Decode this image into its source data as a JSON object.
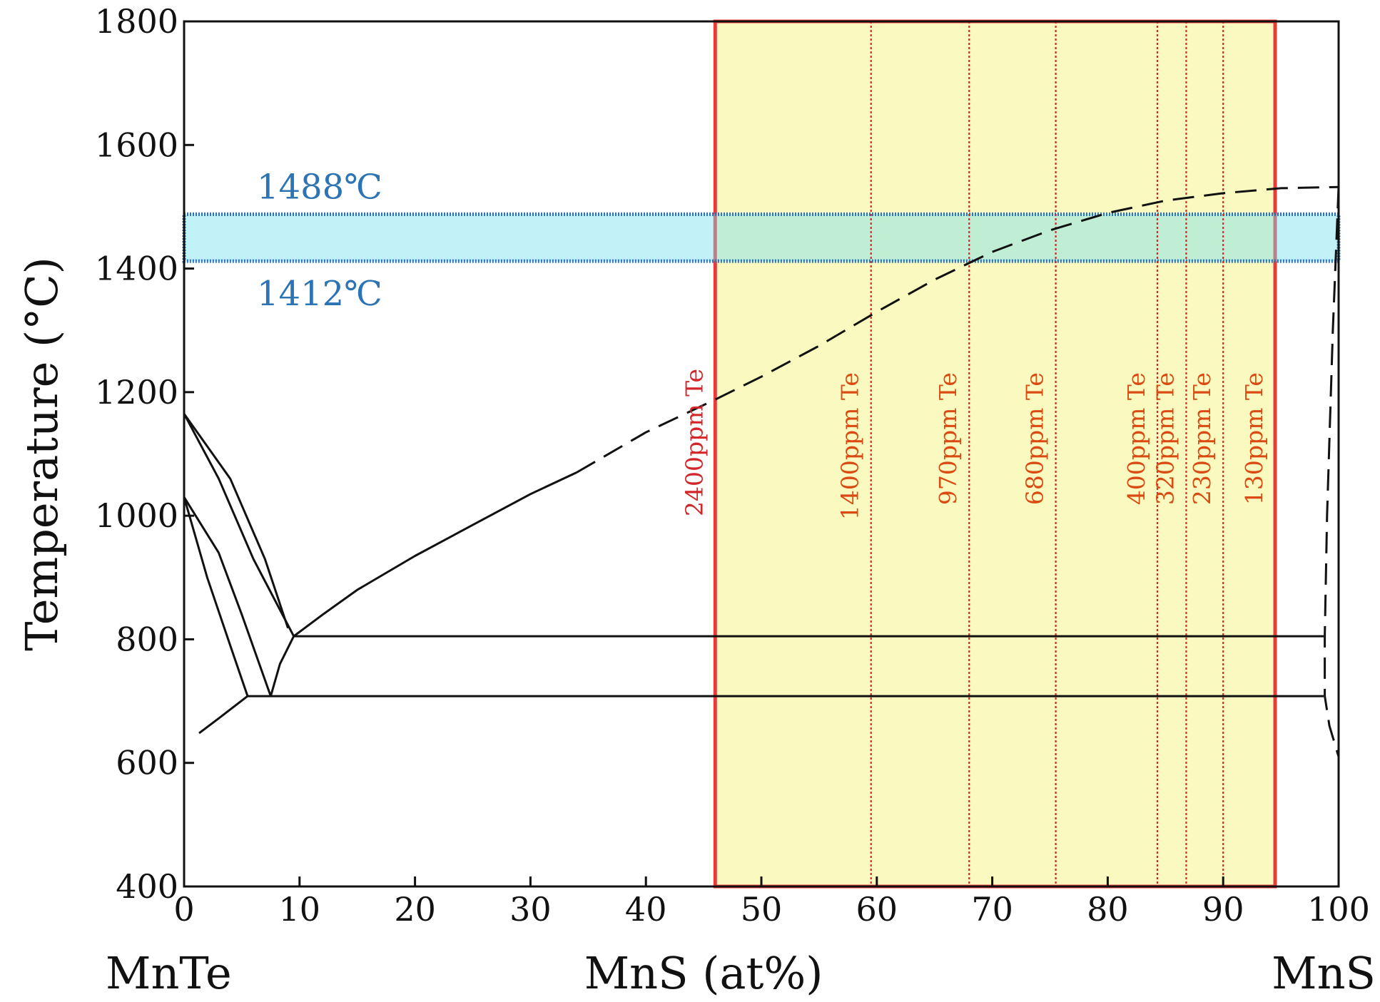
{
  "chart_data": {
    "type": "line",
    "title": "",
    "ylabel": "Temperature (°C)",
    "xlabel": "MnS (at%)",
    "x_left_label": "MnTe",
    "x_right_label": "MnS",
    "xlim": [
      0,
      100
    ],
    "ylim": [
      400,
      1800
    ],
    "x_ticks": [
      0,
      10,
      20,
      30,
      40,
      50,
      60,
      70,
      80,
      90,
      100
    ],
    "y_ticks": [
      400,
      600,
      800,
      1000,
      1200,
      1400,
      1600,
      1800
    ],
    "highlight_x_range": [
      46,
      94.5
    ],
    "highlight_color": "#fafac0",
    "highlight_border": "#e83a3a",
    "temperature_band": {
      "low": 1412,
      "high": 1488,
      "upper_label": "1488℃",
      "lower_label": "1412℃",
      "color": "#2d74b5"
    },
    "te_lines": [
      {
        "x": 46,
        "label": "2400ppm Te"
      },
      {
        "x": 59.5,
        "label": "1400ppm Te"
      },
      {
        "x": 68,
        "label": "970ppm Te"
      },
      {
        "x": 75.5,
        "label": "680ppm Te"
      },
      {
        "x": 84.3,
        "label": "400ppm Te"
      },
      {
        "x": 86.8,
        "label": "320ppm Te"
      },
      {
        "x": 90,
        "label": "230ppm Te"
      },
      {
        "x": 94.5,
        "label": "130ppm Te"
      }
    ],
    "series": [
      {
        "name": "liquidus",
        "style": "solid",
        "points": [
          [
            9.5,
            805
          ],
          [
            12,
            840
          ],
          [
            15,
            880
          ],
          [
            20,
            935
          ],
          [
            25,
            985
          ],
          [
            30,
            1035
          ],
          [
            34,
            1070
          ]
        ]
      },
      {
        "name": "liquidus (estimated)",
        "style": "dashed",
        "points": [
          [
            34,
            1070
          ],
          [
            40,
            1135
          ],
          [
            46,
            1188
          ],
          [
            50,
            1225
          ],
          [
            55,
            1275
          ],
          [
            60,
            1330
          ],
          [
            65,
            1382
          ],
          [
            70,
            1427
          ],
          [
            75,
            1462
          ],
          [
            80,
            1490
          ],
          [
            85,
            1510
          ],
          [
            90,
            1522
          ],
          [
            95,
            1530
          ],
          [
            100,
            1532
          ]
        ]
      },
      {
        "name": "eutectic 805",
        "style": "solid",
        "points": [
          [
            9.5,
            805
          ],
          [
            98.7,
            805
          ]
        ]
      },
      {
        "name": "eutectic 708",
        "style": "solid",
        "points": [
          [
            5.5,
            708
          ],
          [
            98.7,
            708
          ]
        ]
      },
      {
        "name": "MnS solvus",
        "style": "dashed",
        "points": [
          [
            100,
            1532
          ],
          [
            99.5,
            1300
          ],
          [
            99,
            1000
          ],
          [
            98.8,
            805
          ],
          [
            98.8,
            708
          ],
          [
            99.2,
            660
          ],
          [
            100,
            610
          ]
        ]
      },
      {
        "name": "MnTe high-T boundary a",
        "style": "solid",
        "points": [
          [
            0,
            1165
          ],
          [
            4,
            1060
          ],
          [
            7,
            930
          ],
          [
            9,
            818
          ]
        ]
      },
      {
        "name": "MnTe high-T boundary b",
        "style": "solid",
        "points": [
          [
            0,
            1165
          ],
          [
            3,
            1060
          ],
          [
            6,
            930
          ],
          [
            9.5,
            805
          ]
        ]
      },
      {
        "name": "MnTe mid boundary a",
        "style": "solid",
        "points": [
          [
            0,
            1030
          ],
          [
            3,
            940
          ],
          [
            5,
            840
          ],
          [
            7.5,
            708
          ]
        ]
      },
      {
        "name": "MnTe mid boundary b",
        "style": "solid",
        "points": [
          [
            0,
            1030
          ],
          [
            2,
            900
          ],
          [
            4,
            790
          ],
          [
            5.5,
            708
          ]
        ]
      },
      {
        "name": "MnTe 805-708 connector",
        "style": "solid",
        "points": [
          [
            9.5,
            805
          ],
          [
            8.3,
            760
          ],
          [
            7.5,
            708
          ]
        ]
      },
      {
        "name": "MnTe low boundary",
        "style": "solid",
        "points": [
          [
            1.3,
            648
          ],
          [
            3,
            672
          ],
          [
            5.5,
            708
          ]
        ]
      }
    ]
  }
}
